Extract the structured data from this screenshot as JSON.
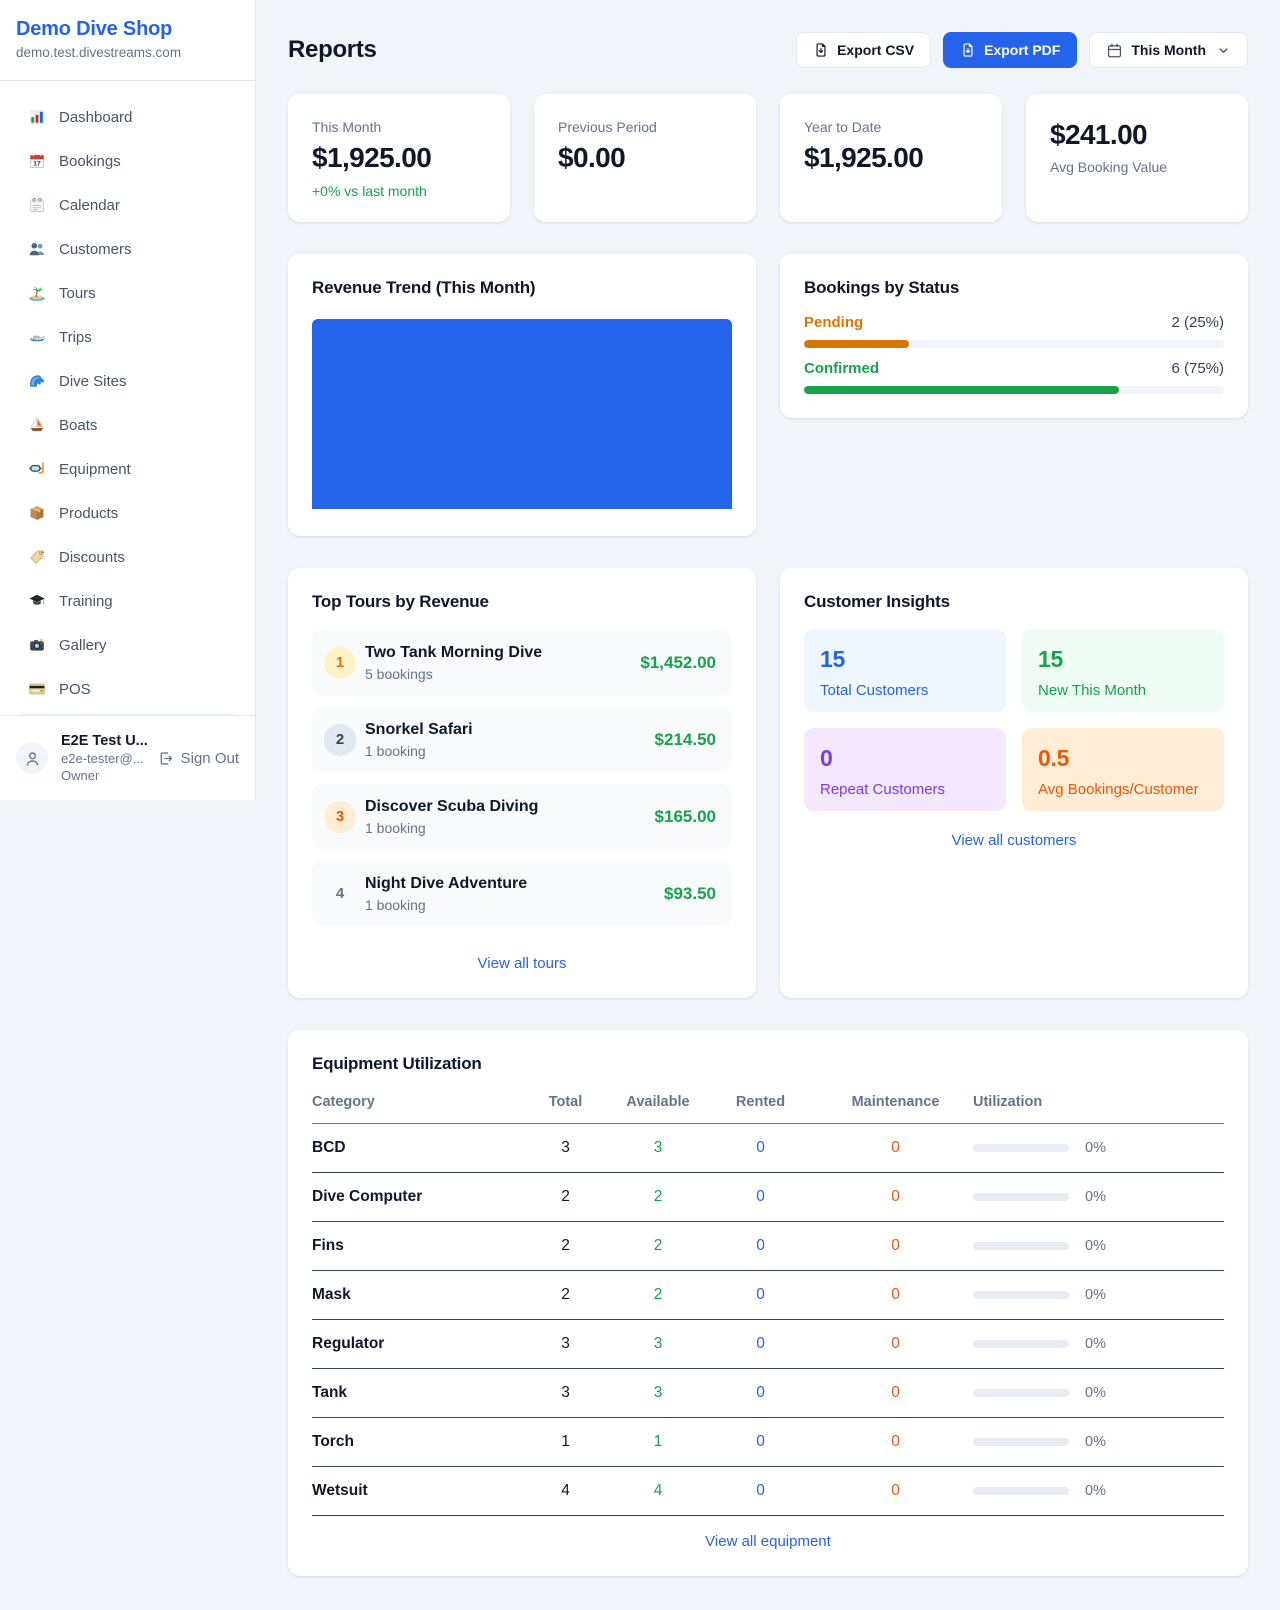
{
  "sidebar": {
    "brand": {
      "name": "Demo Dive Shop",
      "domain": "demo.test.divestreams.com"
    },
    "nav": [
      {
        "label": "Dashboard",
        "icon": "bar-chart-emoji"
      },
      {
        "label": "Bookings",
        "icon": "calendar-date-emoji"
      },
      {
        "label": "Calendar",
        "icon": "spiral-calendar-emoji"
      },
      {
        "label": "Customers",
        "icon": "people-emoji"
      },
      {
        "label": "Tours",
        "icon": "island-emoji"
      },
      {
        "label": "Trips",
        "icon": "motorboat-emoji"
      },
      {
        "label": "Dive Sites",
        "icon": "wave-emoji"
      },
      {
        "label": "Boats",
        "icon": "sailboat-emoji"
      },
      {
        "label": "Equipment",
        "icon": "diving-mask-emoji"
      },
      {
        "label": "Products",
        "icon": "package-emoji"
      },
      {
        "label": "Discounts",
        "icon": "label-tag-emoji"
      },
      {
        "label": "Training",
        "icon": "graduation-cap-emoji"
      },
      {
        "label": "Gallery",
        "icon": "camera-emoji"
      },
      {
        "label": "POS",
        "icon": "credit-card-emoji"
      }
    ],
    "user": {
      "name": "E2E Test U...",
      "email": "e2e-tester@...",
      "role": "Owner",
      "sign_out_label": "Sign Out"
    }
  },
  "header": {
    "title": "Reports",
    "export_csv_label": "Export CSV",
    "export_pdf_label": "Export PDF",
    "period_label": "This Month"
  },
  "stats": [
    {
      "label": "This Month",
      "value": "$1,925.00",
      "delta": "+0% vs last month"
    },
    {
      "label": "Previous Period",
      "value": "$0.00"
    },
    {
      "label": "Year to Date",
      "value": "$1,925.00"
    },
    {
      "label": "Avg Booking Value",
      "value": "$241.00"
    }
  ],
  "revenue_trend": {
    "title": "Revenue Trend (This Month)",
    "bar_color": "#2563eb"
  },
  "bookings_by_status": {
    "title": "Bookings by Status",
    "items": [
      {
        "label": "Pending",
        "value": "2 (25%)",
        "percent": 25,
        "color": "#d97706"
      },
      {
        "label": "Confirmed",
        "value": "6 (75%)",
        "percent": 75,
        "color": "#16a34a"
      }
    ]
  },
  "top_tours": {
    "title": "Top Tours by Revenue",
    "items": [
      {
        "rank": "1",
        "name": "Two Tank Morning Dive",
        "bookings": "5 bookings",
        "revenue": "$1,452.00"
      },
      {
        "rank": "2",
        "name": "Snorkel Safari",
        "bookings": "1 booking",
        "revenue": "$214.50"
      },
      {
        "rank": "3",
        "name": "Discover Scuba Diving",
        "bookings": "1 booking",
        "revenue": "$165.00"
      },
      {
        "rank": "4",
        "name": "Night Dive Adventure",
        "bookings": "1 booking",
        "revenue": "$93.50"
      }
    ],
    "view_all_label": "View all tours"
  },
  "customer_insights": {
    "title": "Customer Insights",
    "tiles": [
      {
        "value": "15",
        "label": "Total Customers",
        "color": "#2563eb"
      },
      {
        "value": "15",
        "label": "New This Month",
        "color": "#16a34a"
      },
      {
        "value": "0",
        "label": "Repeat Customers",
        "color": "#7c3aed"
      },
      {
        "value": "0.5",
        "label": "Avg Bookings/Customer",
        "color": "#ea580c"
      }
    ],
    "view_all_label": "View all customers"
  },
  "equipment": {
    "title": "Equipment Utilization",
    "columns": [
      "Category",
      "Total",
      "Available",
      "Rented",
      "Maintenance",
      "Utilization"
    ],
    "rows": [
      {
        "category": "BCD",
        "total": "3",
        "available": "3",
        "rented": "0",
        "maintenance": "0",
        "utilization": "0%",
        "utilization_percent": 0
      },
      {
        "category": "Dive Computer",
        "total": "2",
        "available": "2",
        "rented": "0",
        "maintenance": "0",
        "utilization": "0%",
        "utilization_percent": 0
      },
      {
        "category": "Fins",
        "total": "2",
        "available": "2",
        "rented": "0",
        "maintenance": "0",
        "utilization": "0%",
        "utilization_percent": 0
      },
      {
        "category": "Mask",
        "total": "2",
        "available": "2",
        "rented": "0",
        "maintenance": "0",
        "utilization": "0%",
        "utilization_percent": 0
      },
      {
        "category": "Regulator",
        "total": "3",
        "available": "3",
        "rented": "0",
        "maintenance": "0",
        "utilization": "0%",
        "utilization_percent": 0
      },
      {
        "category": "Tank",
        "total": "3",
        "available": "3",
        "rented": "0",
        "maintenance": "0",
        "utilization": "0%",
        "utilization_percent": 0
      },
      {
        "category": "Torch",
        "total": "1",
        "available": "1",
        "rented": "0",
        "maintenance": "0",
        "utilization": "0%",
        "utilization_percent": 0
      },
      {
        "category": "Wetsuit",
        "total": "4",
        "available": "4",
        "rented": "0",
        "maintenance": "0",
        "utilization": "0%",
        "utilization_percent": 0
      }
    ],
    "view_all_label": "View all equipment"
  },
  "chart_data": {
    "type": "bar",
    "title": "Revenue Trend (This Month)",
    "categories": [
      "This Month"
    ],
    "values": [
      1925
    ],
    "bar_color": "#2563eb",
    "note": "single full-width bar, no axes or labels shown"
  }
}
